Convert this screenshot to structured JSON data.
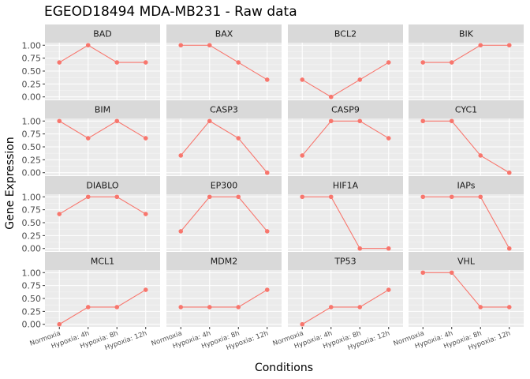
{
  "chart_data": {
    "type": "line",
    "title": "EGEOD18494 MDA-MB231 - Raw data",
    "xlabel": "Conditions",
    "ylabel": "Gene Expression",
    "categories": [
      "Normoxia",
      "Hypoxia: 4h",
      "Hypoxia: 8h",
      "Hypoxia: 12h"
    ],
    "yticks": [
      "0.00",
      "0.25",
      "0.50",
      "0.75",
      "1.00"
    ],
    "ylim": [
      -0.05,
      1.05
    ],
    "grid": true,
    "facet_layout": {
      "rows": 4,
      "cols": 4
    },
    "colors": {
      "line": "#F8766D",
      "panel": "#EBEBEB",
      "strip": "#D9D9D9",
      "grid_major": "#FFFFFF",
      "grid_minor": "#F5F5F5"
    },
    "panels": [
      {
        "name": "BAD",
        "values": [
          0.667,
          1.0,
          0.667,
          0.667
        ]
      },
      {
        "name": "BAX",
        "values": [
          1.0,
          1.0,
          0.667,
          0.333
        ]
      },
      {
        "name": "BCL2",
        "values": [
          0.333,
          0.0,
          0.333,
          0.667
        ]
      },
      {
        "name": "BIK",
        "values": [
          0.667,
          0.667,
          1.0,
          1.0
        ]
      },
      {
        "name": "BIM",
        "values": [
          1.0,
          0.667,
          1.0,
          0.667
        ]
      },
      {
        "name": "CASP3",
        "values": [
          0.333,
          1.0,
          0.667,
          0.0
        ]
      },
      {
        "name": "CASP9",
        "values": [
          0.333,
          1.0,
          1.0,
          0.667
        ]
      },
      {
        "name": "CYC1",
        "values": [
          1.0,
          1.0,
          0.333,
          0.0
        ]
      },
      {
        "name": "DIABLO",
        "values": [
          0.667,
          1.0,
          1.0,
          0.667
        ]
      },
      {
        "name": "EP300",
        "values": [
          0.333,
          1.0,
          1.0,
          0.333
        ]
      },
      {
        "name": "HIF1A",
        "values": [
          1.0,
          1.0,
          0.0,
          0.0
        ]
      },
      {
        "name": "IAPs",
        "values": [
          1.0,
          1.0,
          1.0,
          0.0
        ]
      },
      {
        "name": "MCL1",
        "values": [
          0.0,
          0.333,
          0.333,
          0.667
        ]
      },
      {
        "name": "MDM2",
        "values": [
          0.333,
          0.333,
          0.333,
          0.667
        ]
      },
      {
        "name": "TP53",
        "values": [
          0.0,
          0.333,
          0.333,
          0.667
        ]
      },
      {
        "name": "VHL",
        "values": [
          1.0,
          1.0,
          0.333,
          0.333
        ]
      }
    ]
  }
}
